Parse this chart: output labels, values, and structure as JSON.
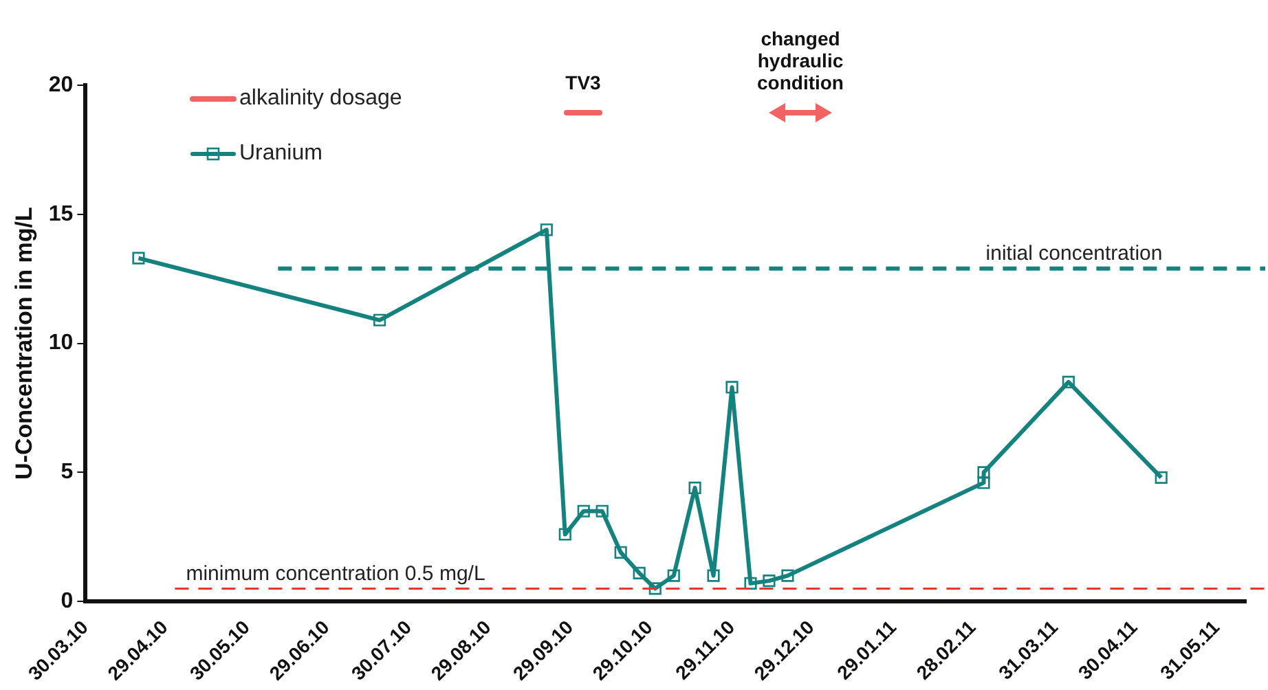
{
  "chart_data": {
    "type": "line",
    "ylabel": "U-Concentration in mg/L",
    "x": [
      "2010-04-19",
      "2010-07-19",
      "2010-09-20",
      "2010-09-27",
      "2010-10-04",
      "2010-10-11",
      "2010-10-18",
      "2010-10-25",
      "2010-10-31",
      "2010-11-07",
      "2010-11-15",
      "2010-11-22",
      "2010-11-29",
      "2010-12-06",
      "2010-12-13",
      "2010-12-20",
      "2011-03-04",
      "2011-03-04",
      "2011-04-05",
      "2011-05-10"
    ],
    "series": [
      {
        "name": "Uranium",
        "color": "#14827e",
        "values": [
          13.3,
          10.9,
          14.4,
          2.6,
          3.5,
          3.5,
          1.9,
          1.1,
          0.5,
          1.0,
          4.4,
          1.0,
          8.3,
          0.7,
          0.8,
          1.0,
          4.6,
          5.0,
          8.5,
          4.8
        ]
      }
    ],
    "xlim": [
      "2010-03-30",
      "2011-06-11"
    ],
    "xticks": [
      {
        "value": "2010-03-30",
        "label": "30.03.10"
      },
      {
        "value": "2010-04-29",
        "label": "29.04.10"
      },
      {
        "value": "2010-05-30",
        "label": "30.05.10"
      },
      {
        "value": "2010-06-29",
        "label": "29.06.10"
      },
      {
        "value": "2010-07-30",
        "label": "30.07.10"
      },
      {
        "value": "2010-08-29",
        "label": "29.08.10"
      },
      {
        "value": "2010-09-29",
        "label": "29.09.10"
      },
      {
        "value": "2010-10-29",
        "label": "29.10.10"
      },
      {
        "value": "2010-11-29",
        "label": "29.11.10"
      },
      {
        "value": "2010-12-29",
        "label": "29.12.10"
      },
      {
        "value": "2011-01-29",
        "label": "29.01.11"
      },
      {
        "value": "2011-02-28",
        "label": "28.02.11"
      },
      {
        "value": "2011-03-31",
        "label": "31.03.11"
      },
      {
        "value": "2011-04-30",
        "label": "30.04.11"
      },
      {
        "value": "2011-05-31",
        "label": "31.05.11"
      }
    ],
    "ylim": [
      0,
      20
    ],
    "yticks": [
      0,
      5,
      10,
      15,
      20
    ],
    "ref_lines": [
      {
        "axis": "y",
        "value": 12.9,
        "label": "initial concentration",
        "color": "#14827e",
        "line_style": "dashed"
      },
      {
        "axis": "y",
        "value": 0.5,
        "label": "minimum concentration 0.5 mg/L",
        "color": "#e8382e",
        "line_style": "dashed"
      }
    ],
    "annotations": [
      "alkalinity dosage",
      "TV3",
      "changed hydraulic condition"
    ],
    "legend": "top left",
    "marker": "square",
    "line_style": "solid",
    "grid": false
  }
}
